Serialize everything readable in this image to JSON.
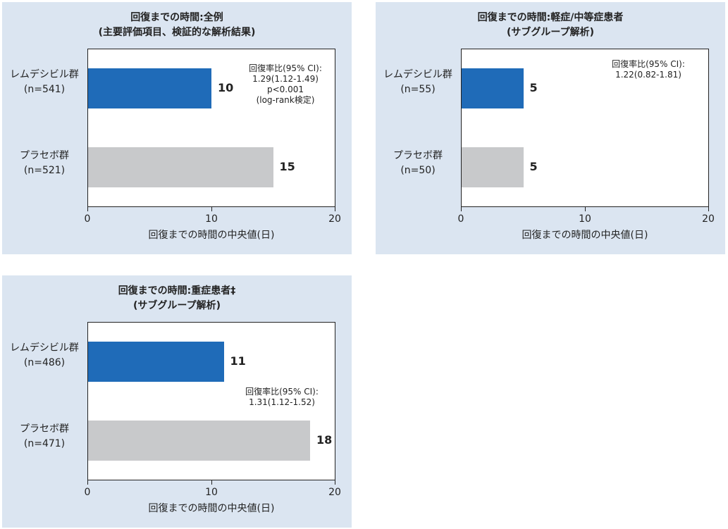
{
  "colors": {
    "panel_bg": "#dbe5f1",
    "remdesivir": "#1f6bb8",
    "placebo": "#c8c9cb",
    "axis": "#222222"
  },
  "chart_data": [
    {
      "type": "bar",
      "orientation": "horizontal",
      "title_lines": [
        "回復までの時間:全例",
        "(主要評価項目、検証的な解析結果)"
      ],
      "xlabel": "回復までの時間の中央値(日)",
      "xlim": [
        0,
        20
      ],
      "xticks": [
        0,
        10,
        20
      ],
      "categories": [
        {
          "name": "レムデシビル群",
          "n": "(n=541)"
        },
        {
          "name": "プラセボ群",
          "n": "(n=521)"
        }
      ],
      "values": [
        10,
        15
      ],
      "value_labels": [
        "10",
        "15"
      ],
      "annotation": [
        "回復率比(95% CI):",
        "1.29(1.12-1.49)",
        "p<0.001",
        "(log-rank検定)"
      ]
    },
    {
      "type": "bar",
      "orientation": "horizontal",
      "title_lines": [
        "回復までの時間:軽症/中等症患者",
        "(サブグループ解析)"
      ],
      "xlabel": "回復までの時間の中央値(日)",
      "xlim": [
        0,
        20
      ],
      "xticks": [
        0,
        10,
        20
      ],
      "categories": [
        {
          "name": "レムデシビル群",
          "n": "(n=55)"
        },
        {
          "name": "プラセボ群",
          "n": "(n=50)"
        }
      ],
      "values": [
        5,
        5
      ],
      "value_labels": [
        "5",
        "5"
      ],
      "annotation": [
        "回復率比(95% CI):",
        "1.22(0.82-1.81)"
      ]
    },
    {
      "type": "bar",
      "orientation": "horizontal",
      "title_lines": [
        "回復までの時間:重症患者‡",
        "(サブグループ解析)"
      ],
      "xlabel": "回復までの時間の中央値(日)",
      "xlim": [
        0,
        20
      ],
      "xticks": [
        0,
        10,
        20
      ],
      "categories": [
        {
          "name": "レムデシビル群",
          "n": "(n=486)"
        },
        {
          "name": "プラセボ群",
          "n": "(n=471)"
        }
      ],
      "values": [
        11,
        18
      ],
      "value_labels": [
        "11",
        "18"
      ],
      "annotation": [
        "回復率比(95% CI):",
        "1.31(1.12-1.52)"
      ]
    }
  ]
}
